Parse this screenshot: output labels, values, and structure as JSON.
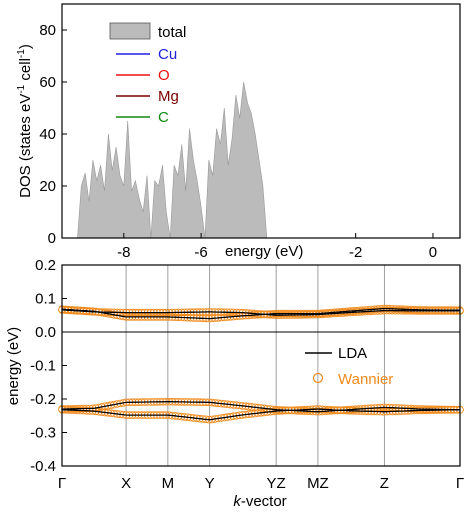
{
  "chart_data": [
    {
      "type": "area",
      "panel": "top",
      "xlabel": "energy (eV)",
      "ylabel": "DOS (states eV",
      "ylabel_sup1": "-1",
      "ylabel_mid": " cell",
      "ylabel_sup2": "-1",
      "ylabel_end": ")",
      "xlim": [
        -9.6,
        0.7
      ],
      "ylim": [
        0,
        90
      ],
      "xticks": [
        -8,
        -6,
        -2,
        0
      ],
      "xtick_labels": [
        "-8",
        "-6",
        "-2",
        "0"
      ],
      "yticks": [
        0,
        20,
        40,
        60,
        80
      ],
      "ytick_labels": [
        "0",
        "20",
        "40",
        "60",
        "80"
      ],
      "legend_placement": "upper-left",
      "series": [
        {
          "name": "total",
          "color": "#bbbbbb",
          "style": "filled-area",
          "x": [
            -9.2,
            -9.1,
            -9.0,
            -8.9,
            -8.8,
            -8.7,
            -8.6,
            -8.5,
            -8.4,
            -8.3,
            -8.2,
            -8.1,
            -8.0,
            -7.9,
            -7.8,
            -7.7,
            -7.6,
            -7.5,
            -7.4,
            -7.3,
            -7.2,
            -7.1,
            -7.0,
            -6.9,
            -6.8,
            -6.7,
            -6.6,
            -6.5,
            -6.4,
            -6.3,
            -6.2,
            -6.1,
            -6.0,
            -5.9,
            -5.8,
            -5.7,
            -5.6,
            -5.5,
            -5.4,
            -5.3,
            -5.2,
            -5.1,
            -5.0,
            -4.9,
            -4.8,
            -4.7,
            -4.6,
            -4.5,
            -4.4,
            -4.3,
            -4.2,
            -4.1,
            -4.0,
            -3.9,
            -3.8,
            -3.7,
            -3.6,
            -3.5,
            -3.4,
            -3.3,
            -3.2,
            -3.1,
            -3.0,
            -2.9,
            -2.8,
            -2.7,
            -2.6,
            -2.5,
            -2.4,
            -2.3,
            -2.2,
            -2.1,
            -2.0,
            -1.9,
            -1.8,
            -1.7,
            -1.6,
            -1.5,
            -1.4,
            -1.3,
            -1.2,
            -1.1,
            -1.0,
            -0.9,
            -0.8,
            -0.7,
            -0.6,
            -0.5,
            -0.4,
            -0.3,
            -0.2,
            -0.1,
            0.0,
            0.1,
            0.2,
            0.3
          ],
          "y": [
            0,
            20,
            25,
            14,
            30,
            22,
            28,
            18,
            40,
            26,
            35,
            24,
            20,
            45,
            18,
            22,
            15,
            10,
            24,
            0,
            22,
            20,
            28,
            10,
            0,
            28,
            24,
            36,
            18,
            42,
            30,
            22,
            12,
            0,
            30,
            24,
            42,
            36,
            50,
            28,
            38,
            55,
            46,
            60,
            52,
            48,
            40,
            30,
            20,
            0,
            0,
            0,
            0,
            0,
            0,
            0,
            0,
            0,
            0,
            0,
            0,
            0,
            0,
            0,
            0,
            0,
            0,
            0,
            0,
            0,
            0,
            0,
            0,
            0,
            0,
            0,
            0,
            0,
            0,
            0,
            0,
            0,
            0,
            0,
            0,
            0,
            0,
            0,
            0,
            0,
            0,
            0,
            0,
            0,
            0,
            0
          ]
        },
        {
          "name": "Cu",
          "color": "#2020e0",
          "style": "line"
        },
        {
          "name": "O",
          "color": "#ee1111",
          "style": "line"
        },
        {
          "name": "Mg",
          "color": "#7a0000",
          "style": "line"
        },
        {
          "name": "C",
          "color": "#108a10",
          "style": "line"
        }
      ]
    },
    {
      "type": "line",
      "panel": "bottom",
      "xlabel": "k-vector",
      "xlabel_italic": "k",
      "xlabel_rest": "-vector",
      "ylabel": "energy (eV)",
      "ylim": [
        -0.4,
        0.2
      ],
      "yticks": [
        0.2,
        0.1,
        0.0,
        -0.1,
        -0.2,
        -0.3,
        -0.4
      ],
      "ytick_labels": [
        "0.2",
        "0.1",
        "0.0",
        "-0.1",
        "-0.2",
        "-0.3",
        "-0.4"
      ],
      "kpoints": [
        "Γ",
        "X",
        "M",
        "Y",
        "YZ",
        "MZ",
        "Z",
        "Γ"
      ],
      "kpos": [
        0.0,
        0.161,
        0.266,
        0.371,
        0.538,
        0.643,
        0.81,
        1.0
      ],
      "legend_placement": "right",
      "series": [
        {
          "name": "LDA",
          "color": "#000000",
          "style": "line",
          "bands": [
            {
              "x": [
                0.0,
                0.08,
                0.161,
                0.266,
                0.371,
                0.45,
                0.538,
                0.643,
                0.72,
                0.81,
                0.9,
                1.0
              ],
              "y": [
                0.068,
                0.062,
                0.045,
                0.045,
                0.04,
                0.048,
                0.055,
                0.055,
                0.062,
                0.07,
                0.066,
                0.065
              ]
            },
            {
              "x": [
                0.0,
                0.08,
                0.161,
                0.266,
                0.371,
                0.45,
                0.538,
                0.643,
                0.72,
                0.81,
                0.9,
                1.0
              ],
              "y": [
                0.066,
                0.06,
                0.058,
                0.058,
                0.06,
                0.058,
                0.05,
                0.052,
                0.058,
                0.064,
                0.063,
                0.063
              ]
            },
            {
              "x": [
                0.0,
                0.08,
                0.161,
                0.266,
                0.371,
                0.45,
                0.538,
                0.643,
                0.72,
                0.81,
                0.9,
                1.0
              ],
              "y": [
                -0.23,
                -0.228,
                -0.21,
                -0.208,
                -0.21,
                -0.22,
                -0.232,
                -0.238,
                -0.232,
                -0.225,
                -0.23,
                -0.232
              ]
            },
            {
              "x": [
                0.0,
                0.08,
                0.161,
                0.266,
                0.371,
                0.45,
                0.538,
                0.643,
                0.72,
                0.81,
                0.9,
                1.0
              ],
              "y": [
                -0.232,
                -0.236,
                -0.248,
                -0.248,
                -0.262,
                -0.248,
                -0.236,
                -0.23,
                -0.235,
                -0.238,
                -0.234,
                -0.232
              ]
            }
          ]
        },
        {
          "name": "Wannier",
          "color": "#f08a1c",
          "style": "open-circles"
        }
      ]
    }
  ]
}
